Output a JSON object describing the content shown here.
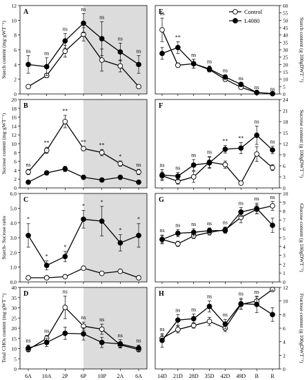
{
  "chart_data": [
    {
      "panel": "A",
      "type": "line",
      "ylabel": "Starch content (mg·gWT⁻¹)",
      "ylim": [
        0,
        12
      ],
      "yticks": [
        0,
        2,
        4,
        6,
        8,
        10,
        12
      ],
      "tickFormat": "0",
      "x": [
        "6A",
        "10A",
        "2P",
        "6P",
        "10P",
        "2A",
        "6A"
      ],
      "series": [
        {
          "name": "Control",
          "values": [
            1.0,
            2.5,
            5.8,
            8.1,
            4.6,
            3.8,
            1.0
          ],
          "errors": [
            0.2,
            0.3,
            0.8,
            0.9,
            1.5,
            0.8,
            0.2
          ]
        },
        {
          "name": "L4080",
          "values": [
            4.0,
            3.7,
            7.2,
            9.6,
            7.5,
            5.7,
            4.0
          ],
          "errors": [
            1.2,
            1.2,
            1.0,
            1.3,
            2.3,
            1.2,
            1.2
          ]
        }
      ],
      "annotations": [
        "ns",
        "ns",
        "ns",
        "ns",
        "ns",
        "ns",
        "ns"
      ]
    },
    {
      "panel": "B",
      "type": "line",
      "ylabel": "Sucrose content (mg·gWT⁻¹)",
      "ylim": [
        0,
        20
      ],
      "yticks": [
        0,
        2,
        4,
        6,
        8,
        10,
        12,
        14,
        16,
        18,
        20
      ],
      "tickFormat": "0",
      "x": [
        "6A",
        "10A",
        "2P",
        "6P",
        "10P",
        "2A",
        "6A"
      ],
      "series": [
        {
          "name": "Control",
          "values": [
            3.6,
            8.5,
            15.0,
            8.9,
            8.0,
            5.5,
            3.6
          ],
          "errors": [
            0.6,
            0.7,
            1.4,
            0.5,
            0.7,
            0.6,
            0.6
          ]
        },
        {
          "name": "L4080",
          "values": [
            1.3,
            3.4,
            4.3,
            2.4,
            1.8,
            2.4,
            1.3
          ],
          "errors": [
            0.2,
            0.3,
            0.6,
            0.3,
            0.2,
            0.2,
            0.2
          ]
        }
      ],
      "annotations": [
        "ns",
        "**",
        "**",
        "**",
        "**",
        "*",
        "ns"
      ]
    },
    {
      "panel": "C",
      "type": "line",
      "ylabel": "Starch- Sucrose ratio",
      "ylim": [
        0,
        6
      ],
      "yticks": [
        0,
        1,
        2,
        3,
        4,
        5,
        6
      ],
      "tickFormat": "0.0",
      "x": [
        "6A",
        "10A",
        "2P",
        "6P",
        "10P",
        "2A",
        "6A"
      ],
      "series": [
        {
          "name": "Control",
          "values": [
            0.28,
            0.28,
            0.35,
            0.93,
            0.58,
            0.72,
            0.28
          ],
          "errors": [
            0.03,
            0.03,
            0.05,
            0.08,
            0.1,
            0.06,
            0.03
          ]
        },
        {
          "name": "L4080",
          "values": [
            3.15,
            1.12,
            1.72,
            4.25,
            4.12,
            2.65,
            3.15
          ],
          "errors": [
            0.8,
            0.3,
            0.35,
            0.6,
            1.0,
            0.55,
            0.8
          ]
        }
      ],
      "annotations": [
        "*",
        "*",
        "*",
        "*",
        "*",
        "*",
        "*"
      ]
    },
    {
      "panel": "D",
      "type": "line",
      "ylabel": "Total CHOs content (mg·gWT⁻¹)",
      "ylim": [
        0,
        40
      ],
      "yticks": [
        0,
        5,
        10,
        15,
        20,
        25,
        30,
        35,
        40
      ],
      "tickFormat": "0",
      "x": [
        "6A",
        "10A",
        "2P",
        "6P",
        "10P",
        "2A",
        "6A"
      ],
      "series": [
        {
          "name": "Control",
          "values": [
            9.5,
            15.0,
            30.2,
            21.0,
            19.5,
            11.8,
            9.5
          ],
          "errors": [
            1.0,
            1.5,
            5.5,
            2.0,
            2.5,
            1.5,
            1.0
          ]
        },
        {
          "name": "L4080",
          "values": [
            10.2,
            13.0,
            17.5,
            17.2,
            13.0,
            12.3,
            10.2
          ],
          "errors": [
            1.5,
            2.0,
            3.0,
            3.0,
            2.5,
            2.0,
            1.5
          ]
        }
      ],
      "annotations": [
        "ns",
        "ns",
        "ns",
        "ns",
        "ns",
        "ns",
        "ns"
      ]
    },
    {
      "panel": "E",
      "type": "line",
      "ylabel": "Starch content (g 100gDWT⁻¹)",
      "ylim": [
        0,
        60
      ],
      "yticks": [
        0,
        5,
        10,
        15,
        20,
        25,
        30,
        35,
        40,
        45,
        50,
        55,
        60
      ],
      "tickFormat": "0",
      "x": [
        "14D",
        "21D",
        "28D",
        "35D",
        "42D",
        "49D",
        "B",
        "R"
      ],
      "series": [
        {
          "name": "Control",
          "values": [
            43.5,
            19.5,
            20.5,
            16.5,
            10.0,
            4.5,
            1.0,
            0.2
          ],
          "errors": [
            8.0,
            1.5,
            3.0,
            1.5,
            1.5,
            1.0,
            0.3,
            0.1
          ]
        },
        {
          "name": "L4080",
          "values": [
            27.5,
            31.5,
            20.5,
            17.0,
            11.5,
            6.5,
            1.0,
            0.2
          ],
          "errors": [
            4.0,
            4.0,
            3.0,
            2.0,
            1.5,
            1.0,
            0.3,
            0.1
          ]
        }
      ],
      "annotations": [
        "ns",
        "**",
        "ns",
        "ns",
        "ns",
        "ns",
        "ns",
        "ns"
      ]
    },
    {
      "panel": "F",
      "type": "line",
      "ylabel": "Sucrose content (g 100gDWT⁻¹)",
      "ylim": [
        0,
        24
      ],
      "yticks": [
        0,
        3,
        6,
        9,
        12,
        15,
        18,
        21,
        24
      ],
      "tickFormat": "0",
      "x": [
        "14D",
        "21D",
        "28D",
        "35D",
        "42D",
        "49D",
        "B",
        "R"
      ],
      "series": [
        {
          "name": "Control",
          "values": [
            3.3,
            1.8,
            3.0,
            7.0,
            6.3,
            1.3,
            9.2,
            5.5
          ],
          "errors": [
            1.0,
            0.8,
            1.5,
            1.5,
            1.0,
            0.3,
            2.0,
            0.8
          ]
        },
        {
          "name": "L4080",
          "values": [
            3.5,
            3.2,
            6.2,
            6.8,
            10.5,
            10.8,
            14.3,
            10.3
          ],
          "errors": [
            1.5,
            1.0,
            1.5,
            1.5,
            1.0,
            1.5,
            2.5,
            1.0
          ]
        }
      ],
      "annotations": [
        "ns",
        "ns",
        "ns",
        "ns",
        "**",
        "**",
        "ns",
        "ns"
      ]
    },
    {
      "panel": "G",
      "type": "line",
      "ylabel": "Glucose content (g 100gDWT⁻¹)",
      "ylim": [
        0,
        10
      ],
      "yticks": [
        0,
        1,
        2,
        3,
        4,
        5,
        6,
        7,
        8,
        9,
        10
      ],
      "tickFormat": "0",
      "x": [
        "14D",
        "21D",
        "28D",
        "35D",
        "42D",
        "49D",
        "B",
        "R"
      ],
      "series": [
        {
          "name": "Control",
          "values": [
            4.8,
            4.3,
            5.2,
            5.6,
            5.9,
            7.3,
            8.2,
            8.6
          ],
          "errors": [
            0.4,
            0.3,
            0.3,
            0.3,
            0.3,
            0.6,
            0.5,
            0.5
          ]
        },
        {
          "name": "L4080",
          "values": [
            4.8,
            5.5,
            5.6,
            5.8,
            5.8,
            7.9,
            8.3,
            6.4
          ],
          "errors": [
            0.5,
            0.4,
            0.4,
            0.3,
            0.3,
            0.5,
            0.6,
            0.8
          ]
        }
      ],
      "annotations": [
        "ns",
        "ns",
        "ns",
        "ns",
        "ns",
        "ns",
        "ns",
        "ns"
      ]
    },
    {
      "panel": "H",
      "type": "line",
      "ylabel": "Fructose content (g 100gDWT⁻¹)",
      "ylim": [
        0,
        12
      ],
      "yticks": [
        0,
        2,
        4,
        6,
        8,
        10,
        12
      ],
      "tickFormat": "0",
      "x": [
        "14D",
        "21D",
        "28D",
        "35D",
        "42D",
        "49D",
        "B",
        "R"
      ],
      "series": [
        {
          "name": "Control",
          "values": [
            4.5,
            5.8,
            6.4,
            7.0,
            6.0,
            9.5,
            10.0,
            11.7
          ],
          "errors": [
            0.5,
            0.5,
            0.4,
            0.6,
            0.5,
            0.7,
            0.6,
            0.3
          ]
        },
        {
          "name": "L4080",
          "values": [
            4.2,
            7.2,
            7.4,
            9.2,
            6.6,
            9.6,
            9.5,
            8.0
          ],
          "errors": [
            1.0,
            0.8,
            0.7,
            0.8,
            0.7,
            0.8,
            1.2,
            1.0
          ]
        }
      ],
      "annotations": [
        "ns",
        "ns",
        "ns",
        "ns",
        "ns",
        "ns",
        "ns",
        "*"
      ]
    }
  ],
  "legend": {
    "entries": [
      {
        "name": "Control",
        "marker": "open-circle"
      },
      {
        "name": "L4080",
        "marker": "filled-circle"
      }
    ],
    "placement": "top-right of panel E"
  },
  "shaded_region": {
    "panels": [
      "A",
      "B",
      "C",
      "D"
    ],
    "from": "6P",
    "to": "6A",
    "color": "#dcdcdc"
  },
  "colors": {
    "control_fill": "#ffffff",
    "l4080_fill": "#000000",
    "line": "#000000",
    "shade": "#dcdcdc"
  }
}
